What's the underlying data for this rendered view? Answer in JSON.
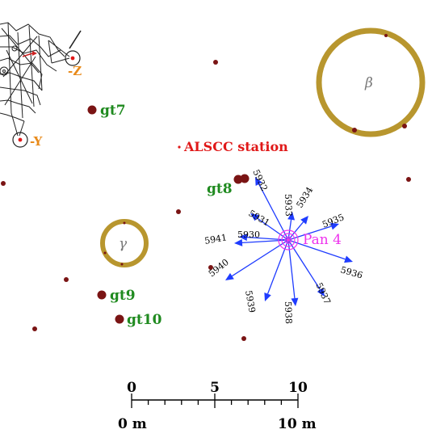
{
  "colors": {
    "boulder": "#7a1414",
    "crater_ring": "#b8962e",
    "arrow": "#1f3cff",
    "label_green": "#1f8a1f",
    "label_red": "#e01818",
    "label_magenta": "#ee33ee",
    "label_orange": "#e88a1a",
    "lm_lines": "#222222",
    "scale": "#000000"
  },
  "lm_labels": {
    "z": "-Z",
    "y": "-Y"
  },
  "station_label": "ALSCC station",
  "pan_label": "Pan 4",
  "geology_labels": [
    {
      "id": "gt7",
      "text": "gt7"
    },
    {
      "id": "gt8",
      "text": "gt8"
    },
    {
      "id": "gt9",
      "text": "gt9"
    },
    {
      "id": "gt10",
      "text": "gt10"
    }
  ],
  "crater_labels": [
    {
      "id": "beta",
      "text": "β"
    },
    {
      "id": "gamma",
      "text": "γ"
    }
  ],
  "photo_frames": [
    "5930",
    "5931",
    "5932",
    "5933",
    "5934",
    "5935",
    "5936",
    "5937",
    "5938",
    "5939",
    "5940",
    "5941"
  ],
  "scale_bar": {
    "ticks": [
      0,
      5,
      10
    ],
    "minor_divisions": 10,
    "left_label": "0 m",
    "right_label": "10 m"
  }
}
